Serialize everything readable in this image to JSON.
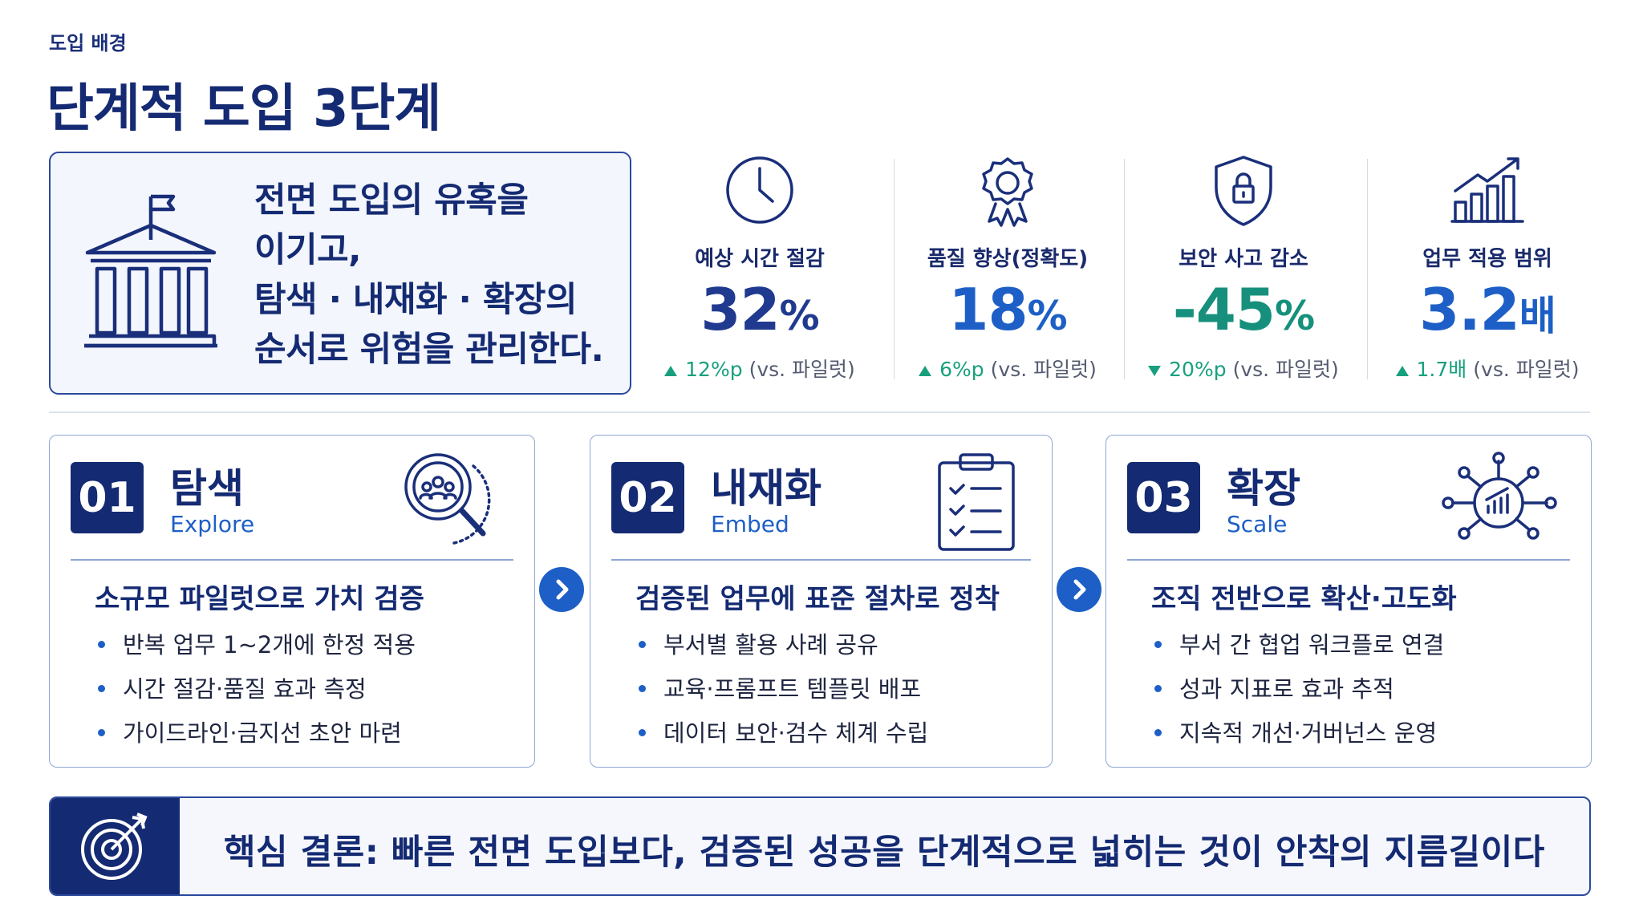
{
  "header": {
    "eyebrow": "도입 배경",
    "title": "단계적 도입 3단계"
  },
  "hero": {
    "lines": [
      "전면 도입의 유혹을",
      "이기고,",
      "탐색 · 내재화 · 확장의",
      "순서로 위험을 관리한다."
    ]
  },
  "stats": [
    {
      "label": "예상 시간 절감",
      "value": "32",
      "unit": "%",
      "direction": "up",
      "change": "12%p",
      "note": "(vs. 파일럿)",
      "color": "#1f3a8f"
    },
    {
      "label": "품질 향상(정확도)",
      "value": "18",
      "unit": "%",
      "direction": "up",
      "change": "6%p",
      "note": "(vs. 파일럿)",
      "color": "#1d5fc6"
    },
    {
      "label": "보안 사고 감소",
      "value": "-45",
      "unit": "%",
      "direction": "down",
      "change": "20%p",
      "note": "(vs. 파일럿)",
      "color": "#16907c"
    },
    {
      "label": "업무 적용 범위",
      "value": "3.2",
      "unit": "배",
      "direction": "up",
      "change": "1.7배",
      "note": "(vs. 파일럿)",
      "color": "#1d5fc6"
    }
  ],
  "phases": [
    {
      "number": "01",
      "title": "탐색",
      "subtitle": "Explore",
      "heading": "소규모 파일럿으로 가치 검증",
      "bullets": [
        "반복 업무 1~2개에 한정 적용",
        "시간 절감·품질 효과 측정",
        "가이드라인·금지선 초안 마련"
      ]
    },
    {
      "number": "02",
      "title": "내재화",
      "subtitle": "Embed",
      "heading": "검증된 업무에 표준 절차로 정착",
      "bullets": [
        "부서별 활용 사례 공유",
        "교육·프롬프트 템플릿 배포",
        "데이터 보안·검수 체계 수립"
      ]
    },
    {
      "number": "03",
      "title": "확장",
      "subtitle": "Scale",
      "heading": "조직 전반으로 확산·고도화",
      "bullets": [
        "부서 간 협업 워크플로 연결",
        "성과 지표로 효과 추적",
        "지속적 개선·거버넌스 운영"
      ]
    }
  ],
  "conclusion": {
    "text": "핵심 결론: 빠른 전면 도입보다, 검증된 성공을 단계적으로 넓히는 것이 안착의 지름길이다"
  }
}
